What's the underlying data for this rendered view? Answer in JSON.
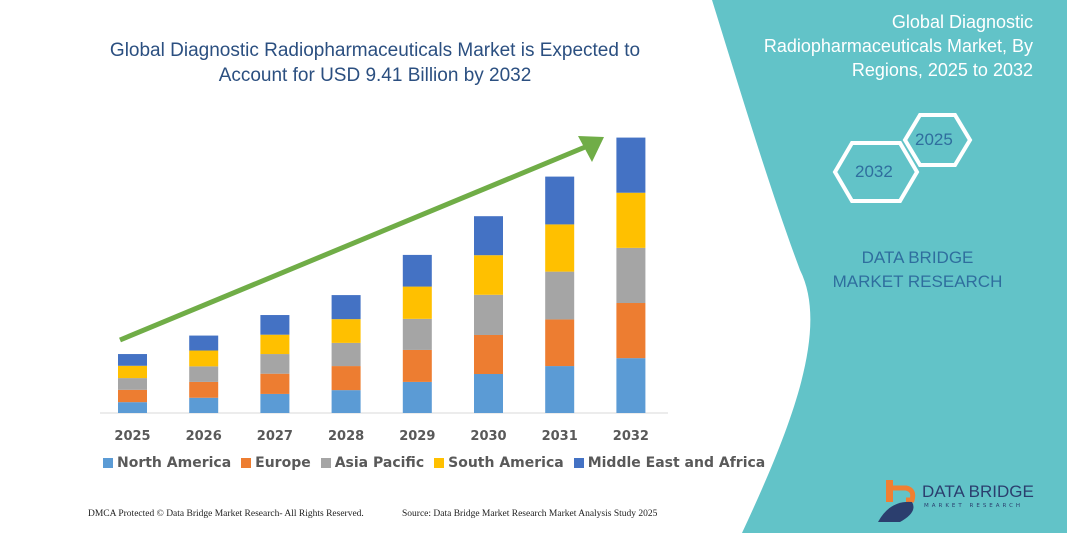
{
  "header": {
    "title": "Global Diagnostic Radiopharmaceuticals Market is Expected to Account for USD 9.41 Billion by 2032"
  },
  "side_panel": {
    "title": "Global Diagnostic Radiopharmaceuticals Market, By Regions, 2025 to 2032",
    "hex_start": "2025",
    "hex_end": "2032",
    "brand": "DATA BRIDGE MARKET RESEARCH",
    "bg_color": "#62c3c8"
  },
  "chart_data": {
    "type": "bar",
    "stacked": true,
    "categories": [
      "2025",
      "2026",
      "2027",
      "2028",
      "2029",
      "2030",
      "2031",
      "2032"
    ],
    "series": [
      {
        "name": "North America",
        "color": "#5b9bd5",
        "values": [
          0.37,
          0.52,
          0.65,
          0.78,
          1.06,
          1.33,
          1.6,
          1.87
        ]
      },
      {
        "name": "Europe",
        "color": "#ed7d31",
        "values": [
          0.42,
          0.54,
          0.69,
          0.82,
          1.09,
          1.33,
          1.59,
          1.88
        ]
      },
      {
        "name": "Asia Pacific",
        "color": "#a5a5a5",
        "values": [
          0.4,
          0.53,
          0.67,
          0.79,
          1.06,
          1.37,
          1.63,
          1.88
        ]
      },
      {
        "name": "South America",
        "color": "#ffc000",
        "values": [
          0.42,
          0.54,
          0.66,
          0.81,
          1.1,
          1.35,
          1.61,
          1.88
        ]
      },
      {
        "name": "Middle East and Africa",
        "color": "#4472c4",
        "values": [
          0.4,
          0.51,
          0.67,
          0.82,
          1.08,
          1.33,
          1.63,
          1.88
        ]
      }
    ],
    "ylim": [
      0,
      9.41
    ],
    "grid": false,
    "legend": "bottom",
    "trend_arrow_color": "#70ad47"
  },
  "footer": {
    "left": "DMCA Protected © Data Bridge Market Research- All Rights Reserved.",
    "right": "Source: Data Bridge Market Research Market Analysis Study 2025"
  },
  "logo": {
    "name": "DATA BRIDGE",
    "tagline": "MARKET RESEARCH"
  }
}
